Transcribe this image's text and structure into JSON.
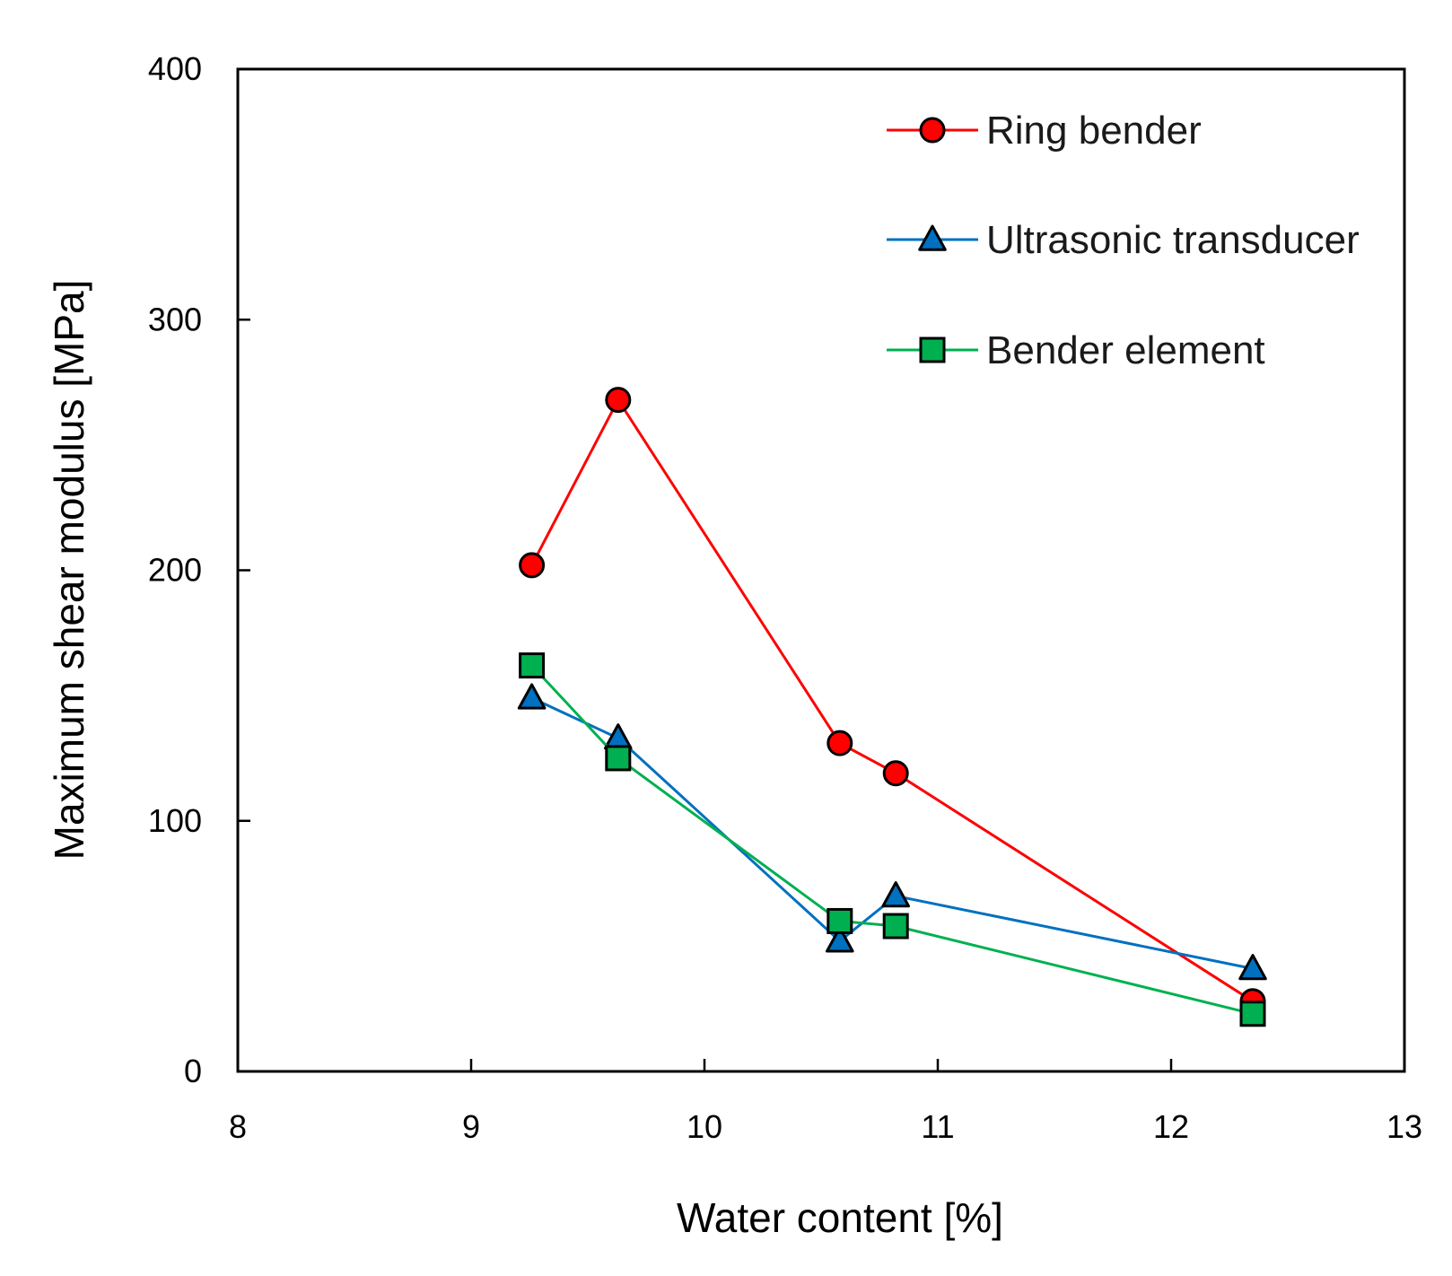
{
  "chart_data": {
    "type": "line",
    "title": "",
    "xlabel": "Water content [%]",
    "ylabel": "Maximum shear modulus [MPa]",
    "xlim": [
      8,
      13
    ],
    "ylim": [
      0,
      400
    ],
    "x_ticks": [
      8,
      9,
      10,
      11,
      12,
      13
    ],
    "y_ticks": [
      0,
      100,
      200,
      300,
      400
    ],
    "grid": false,
    "legend_position": "top-right",
    "series": [
      {
        "name": "Ring bender",
        "color": "#ff0000",
        "marker": "circle",
        "marker_fill": "#ff0000",
        "x": [
          9.26,
          9.63,
          10.58,
          10.82,
          12.35
        ],
        "y": [
          202,
          268,
          131,
          119,
          28
        ]
      },
      {
        "name": "Ultrasonic transducer",
        "color": "#0070c0",
        "marker": "triangle",
        "marker_fill": "#0070c0",
        "x": [
          9.26,
          9.63,
          10.58,
          10.82,
          12.35
        ],
        "y": [
          149,
          133,
          52,
          70,
          41
        ]
      },
      {
        "name": "Bender element",
        "color": "#00b050",
        "marker": "square",
        "marker_fill": "#00b050",
        "x": [
          9.26,
          9.63,
          10.58,
          10.82,
          12.35
        ],
        "y": [
          162,
          125,
          60,
          58,
          23
        ]
      }
    ]
  }
}
